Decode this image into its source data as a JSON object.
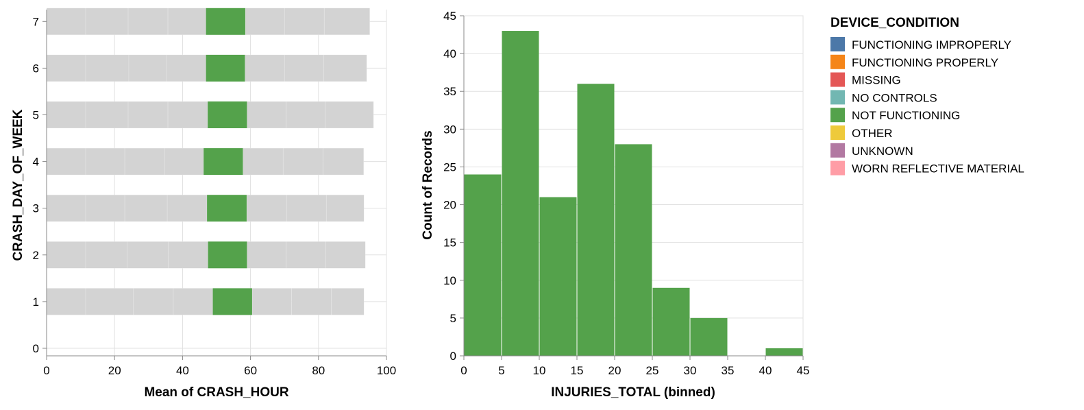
{
  "chart_data": [
    {
      "type": "bar",
      "orientation": "horizontal",
      "stacked": true,
      "xlabel": "Mean of CRASH_HOUR",
      "ylabel": "CRASH_DAY_OF_WEEK",
      "xlim": [
        0,
        100
      ],
      "x_ticks": [
        "0",
        "20",
        "40",
        "60",
        "80",
        "100"
      ],
      "y_ticks": [
        "0",
        "1",
        "2",
        "3",
        "4",
        "5",
        "6",
        "7"
      ],
      "grid": true,
      "highlight_series": "NOT FUNCTIONING",
      "highlight_color": "#54a24b",
      "other_color": "#d3d3d3",
      "rows": [
        {
          "day": 7,
          "segments": [
            11.5,
            12.5,
            11.7,
            11.2,
            11.6,
            11.5,
            11.7,
            13.4
          ]
        },
        {
          "day": 6,
          "segments": [
            11.5,
            12.7,
            11.2,
            11.5,
            11.5,
            11.6,
            11.5,
            12.7
          ]
        },
        {
          "day": 5,
          "segments": [
            11.5,
            12.5,
            11.7,
            11.7,
            11.6,
            11.5,
            11.5,
            14.2
          ]
        },
        {
          "day": 4,
          "segments": [
            11.5,
            11.5,
            11.7,
            11.5,
            11.6,
            11.8,
            11.7,
            12.0
          ]
        },
        {
          "day": 3,
          "segments": [
            11.5,
            11.5,
            12.5,
            11.7,
            11.7,
            11.7,
            11.7,
            11.1
          ]
        },
        {
          "day": 2,
          "segments": [
            11.5,
            12.2,
            12.1,
            11.7,
            11.5,
            11.5,
            11.7,
            11.6
          ]
        },
        {
          "day": 1,
          "segments": [
            11.5,
            14.0,
            11.8,
            11.6,
            11.6,
            11.6,
            11.7,
            9.6
          ]
        }
      ]
    },
    {
      "type": "bar",
      "histogram": true,
      "xlabel": "INJURIES_TOTAL (binned)",
      "ylabel": "Count of Records",
      "ylim": [
        0,
        45
      ],
      "x_ticks": [
        "0",
        "5",
        "10",
        "15",
        "20",
        "25",
        "30",
        "35",
        "40",
        "45"
      ],
      "y_ticks": [
        "0",
        "5",
        "10",
        "15",
        "20",
        "25",
        "30",
        "35",
        "40",
        "45"
      ],
      "grid": true,
      "color": "#54a24b",
      "bins": [
        {
          "start": 0,
          "end": 5,
          "count": 24
        },
        {
          "start": 5,
          "end": 10,
          "count": 43
        },
        {
          "start": 10,
          "end": 15,
          "count": 21
        },
        {
          "start": 15,
          "end": 20,
          "count": 36
        },
        {
          "start": 20,
          "end": 25,
          "count": 28
        },
        {
          "start": 25,
          "end": 30,
          "count": 9
        },
        {
          "start": 30,
          "end": 35,
          "count": 5
        },
        {
          "start": 35,
          "end": 40,
          "count": 0
        },
        {
          "start": 40,
          "end": 45,
          "count": 1
        }
      ]
    }
  ],
  "legend": {
    "title": "DEVICE_CONDITION",
    "placement": "right",
    "items": [
      {
        "label": "FUNCTIONING IMPROPERLY",
        "color": "#4c78a8"
      },
      {
        "label": "FUNCTIONING PROPERLY",
        "color": "#f58518"
      },
      {
        "label": "MISSING",
        "color": "#e45756"
      },
      {
        "label": "NO CONTROLS",
        "color": "#72b7b2"
      },
      {
        "label": "NOT FUNCTIONING",
        "color": "#54a24b"
      },
      {
        "label": "OTHER",
        "color": "#eeca3b"
      },
      {
        "label": "UNKNOWN",
        "color": "#b279a2"
      },
      {
        "label": "WORN REFLECTIVE MATERIAL",
        "color": "#ff9da6"
      }
    ]
  }
}
